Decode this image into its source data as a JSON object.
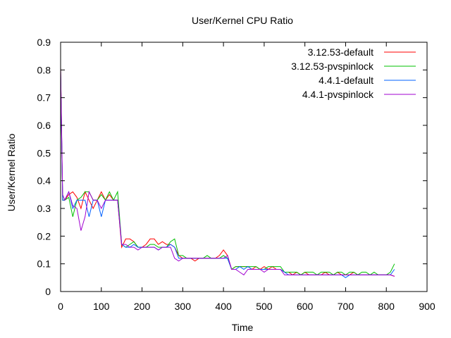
{
  "chart_data": {
    "type": "line",
    "title": "User/Kernel CPU Ratio",
    "xlabel": "Time",
    "ylabel": "User/Kernel Ratio",
    "xlim": [
      0,
      900
    ],
    "ylim": [
      0,
      0.9
    ],
    "xticks": [
      "0",
      "100",
      "200",
      "300",
      "400",
      "500",
      "600",
      "700",
      "800",
      "900"
    ],
    "yticks": [
      "0",
      "0.1",
      "0.2",
      "0.3",
      "0.4",
      "0.5",
      "0.6",
      "0.7",
      "0.8",
      "0.9"
    ],
    "grid": false,
    "legend_position": "top-right",
    "series": [
      {
        "name": "3.12.53-default",
        "color": "#ff0000",
        "x": [
          0,
          5,
          10,
          20,
          30,
          40,
          50,
          60,
          70,
          80,
          90,
          100,
          110,
          120,
          130,
          140,
          150,
          160,
          170,
          180,
          190,
          200,
          210,
          220,
          230,
          240,
          250,
          260,
          270,
          280,
          290,
          300,
          310,
          320,
          330,
          340,
          350,
          360,
          370,
          380,
          390,
          400,
          410,
          420,
          430,
          440,
          450,
          460,
          470,
          480,
          490,
          500,
          510,
          520,
          530,
          540,
          550,
          560,
          570,
          580,
          590,
          600,
          610,
          620,
          630,
          640,
          650,
          660,
          670,
          680,
          690,
          700,
          710,
          720,
          730,
          740,
          750,
          760,
          770,
          780,
          790,
          800,
          810,
          820
        ],
        "values": [
          0.81,
          0.33,
          0.33,
          0.35,
          0.36,
          0.34,
          0.3,
          0.36,
          0.33,
          0.3,
          0.33,
          0.36,
          0.33,
          0.35,
          0.33,
          0.33,
          0.16,
          0.19,
          0.19,
          0.18,
          0.16,
          0.16,
          0.17,
          0.19,
          0.19,
          0.17,
          0.18,
          0.17,
          0.17,
          0.16,
          0.13,
          0.12,
          0.12,
          0.12,
          0.11,
          0.12,
          0.12,
          0.12,
          0.12,
          0.12,
          0.13,
          0.15,
          0.13,
          0.08,
          0.09,
          0.09,
          0.09,
          0.09,
          0.08,
          0.09,
          0.08,
          0.09,
          0.08,
          0.09,
          0.08,
          0.08,
          0.07,
          0.07,
          0.06,
          0.07,
          0.06,
          0.07,
          0.06,
          0.06,
          0.06,
          0.06,
          0.07,
          0.06,
          0.06,
          0.07,
          0.06,
          0.06,
          0.06,
          0.07,
          0.06,
          0.06,
          0.06,
          0.06,
          0.06,
          0.06,
          0.06,
          0.06,
          0.06,
          0.055
        ]
      },
      {
        "name": "3.12.53-pvspinlock",
        "color": "#00c000",
        "x": [
          0,
          5,
          10,
          20,
          30,
          40,
          50,
          60,
          70,
          80,
          90,
          100,
          110,
          120,
          130,
          140,
          150,
          160,
          170,
          180,
          190,
          200,
          210,
          220,
          230,
          240,
          250,
          260,
          270,
          280,
          290,
          300,
          310,
          320,
          330,
          340,
          350,
          360,
          370,
          380,
          390,
          400,
          410,
          420,
          430,
          440,
          450,
          460,
          470,
          480,
          490,
          500,
          510,
          520,
          530,
          540,
          550,
          560,
          570,
          580,
          590,
          600,
          610,
          620,
          630,
          640,
          650,
          660,
          670,
          680,
          690,
          700,
          710,
          720,
          730,
          740,
          750,
          760,
          770,
          780,
          790,
          800,
          810,
          820
        ],
        "values": [
          0.78,
          0.33,
          0.33,
          0.34,
          0.27,
          0.33,
          0.34,
          0.36,
          0.36,
          0.33,
          0.33,
          0.35,
          0.33,
          0.36,
          0.33,
          0.36,
          0.17,
          0.16,
          0.17,
          0.18,
          0.16,
          0.16,
          0.16,
          0.17,
          0.17,
          0.16,
          0.16,
          0.16,
          0.18,
          0.19,
          0.13,
          0.13,
          0.12,
          0.12,
          0.12,
          0.12,
          0.12,
          0.13,
          0.12,
          0.12,
          0.12,
          0.13,
          0.12,
          0.08,
          0.09,
          0.09,
          0.09,
          0.09,
          0.09,
          0.09,
          0.08,
          0.08,
          0.09,
          0.09,
          0.09,
          0.09,
          0.07,
          0.07,
          0.07,
          0.07,
          0.06,
          0.07,
          0.07,
          0.07,
          0.06,
          0.07,
          0.07,
          0.07,
          0.06,
          0.07,
          0.07,
          0.06,
          0.07,
          0.07,
          0.06,
          0.07,
          0.07,
          0.06,
          0.07,
          0.06,
          0.06,
          0.06,
          0.07,
          0.1
        ]
      },
      {
        "name": "4.4.1-default",
        "color": "#0060ff",
        "x": [
          0,
          5,
          10,
          20,
          30,
          40,
          50,
          60,
          70,
          80,
          90,
          100,
          110,
          120,
          130,
          140,
          150,
          160,
          170,
          180,
          190,
          200,
          210,
          220,
          230,
          240,
          250,
          260,
          270,
          280,
          290,
          300,
          310,
          320,
          330,
          340,
          350,
          360,
          370,
          380,
          390,
          400,
          410,
          420,
          430,
          440,
          450,
          460,
          470,
          480,
          490,
          500,
          510,
          520,
          530,
          540,
          550,
          560,
          570,
          580,
          590,
          600,
          610,
          620,
          630,
          640,
          650,
          660,
          670,
          680,
          690,
          700,
          710,
          720,
          730,
          740,
          750,
          760,
          770,
          780,
          790,
          800,
          810,
          820
        ],
        "values": [
          0.8,
          0.33,
          0.33,
          0.36,
          0.3,
          0.33,
          0.33,
          0.33,
          0.27,
          0.33,
          0.33,
          0.27,
          0.33,
          0.33,
          0.33,
          0.33,
          0.17,
          0.16,
          0.16,
          0.17,
          0.16,
          0.16,
          0.16,
          0.16,
          0.16,
          0.15,
          0.16,
          0.16,
          0.17,
          0.16,
          0.12,
          0.12,
          0.12,
          0.12,
          0.12,
          0.12,
          0.12,
          0.12,
          0.12,
          0.12,
          0.12,
          0.12,
          0.12,
          0.08,
          0.08,
          0.09,
          0.08,
          0.09,
          0.08,
          0.08,
          0.08,
          0.08,
          0.08,
          0.08,
          0.08,
          0.08,
          0.07,
          0.06,
          0.06,
          0.06,
          0.06,
          0.06,
          0.06,
          0.06,
          0.06,
          0.06,
          0.06,
          0.06,
          0.06,
          0.06,
          0.06,
          0.05,
          0.06,
          0.06,
          0.06,
          0.06,
          0.06,
          0.06,
          0.06,
          0.06,
          0.06,
          0.06,
          0.06,
          0.08
        ]
      },
      {
        "name": "4.4.1-pvspinlock",
        "color": "#a000d0",
        "x": [
          0,
          5,
          10,
          20,
          30,
          40,
          50,
          60,
          70,
          80,
          90,
          100,
          110,
          120,
          130,
          140,
          150,
          160,
          170,
          180,
          190,
          200,
          210,
          220,
          230,
          240,
          250,
          260,
          270,
          280,
          290,
          300,
          310,
          320,
          330,
          340,
          350,
          360,
          370,
          380,
          390,
          400,
          410,
          420,
          430,
          440,
          450,
          460,
          470,
          480,
          490,
          500,
          510,
          520,
          530,
          540,
          550,
          560,
          570,
          580,
          590,
          600,
          610,
          620,
          630,
          640,
          650,
          660,
          670,
          680,
          690,
          700,
          710,
          720,
          730,
          740,
          750,
          760,
          770,
          780,
          790,
          800,
          810,
          820
        ],
        "values": [
          0.81,
          0.35,
          0.33,
          0.36,
          0.31,
          0.3,
          0.22,
          0.27,
          0.36,
          0.33,
          0.33,
          0.3,
          0.33,
          0.33,
          0.33,
          0.33,
          0.17,
          0.17,
          0.16,
          0.16,
          0.15,
          0.16,
          0.16,
          0.16,
          0.16,
          0.15,
          0.16,
          0.16,
          0.16,
          0.12,
          0.11,
          0.12,
          0.12,
          0.12,
          0.12,
          0.12,
          0.12,
          0.12,
          0.12,
          0.12,
          0.12,
          0.12,
          0.13,
          0.08,
          0.08,
          0.07,
          0.06,
          0.08,
          0.08,
          0.08,
          0.08,
          0.07,
          0.08,
          0.08,
          0.08,
          0.08,
          0.06,
          0.06,
          0.06,
          0.06,
          0.06,
          0.06,
          0.06,
          0.06,
          0.06,
          0.06,
          0.06,
          0.06,
          0.06,
          0.06,
          0.06,
          0.06,
          0.06,
          0.06,
          0.06,
          0.06,
          0.06,
          0.06,
          0.06,
          0.06,
          0.06,
          0.06,
          0.06,
          0.055
        ]
      }
    ]
  }
}
